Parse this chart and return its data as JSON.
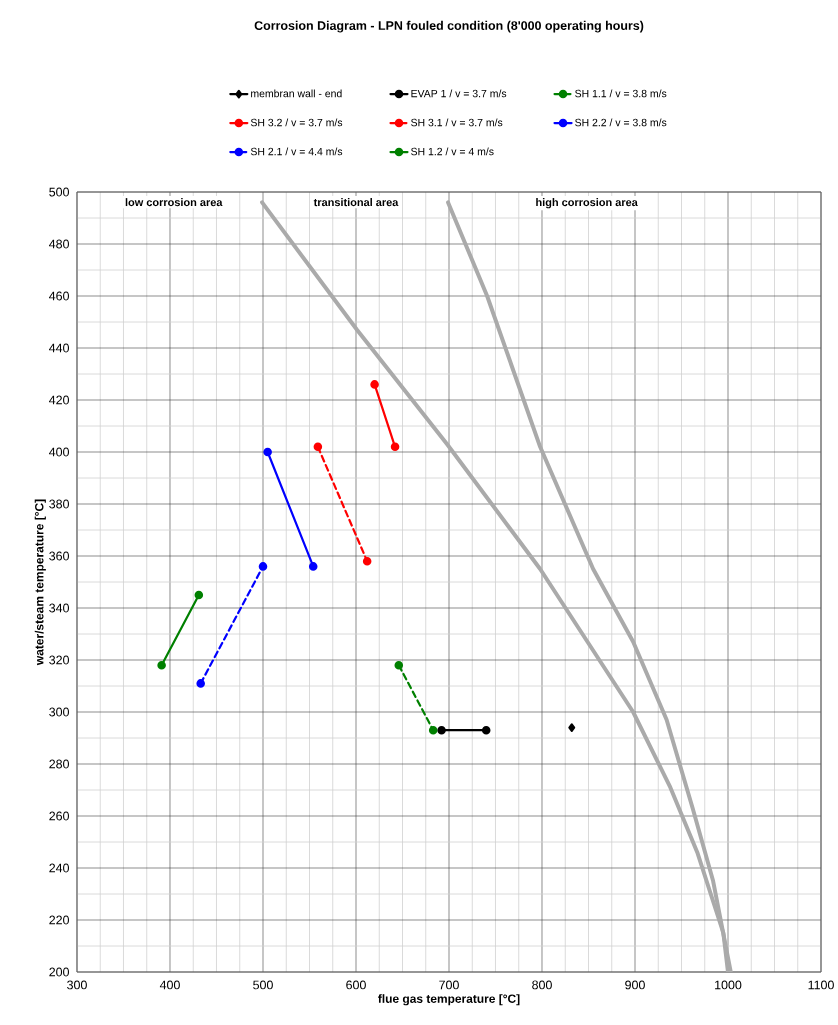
{
  "chart_data": {
    "type": "line",
    "title": "Corrosion Diagram - LPN  fouled condition  (8'000 operating hours)",
    "xlabel": "flue gas temperature  [°C]",
    "ylabel": "water/steam temperature  [°C]",
    "xlim": [
      300,
      1100
    ],
    "ylim": [
      200,
      500
    ],
    "xticks": [
      300,
      400,
      500,
      600,
      700,
      800,
      900,
      1000,
      1100
    ],
    "yticks": [
      200,
      220,
      240,
      260,
      280,
      300,
      320,
      340,
      360,
      380,
      400,
      420,
      440,
      460,
      480,
      500
    ],
    "grid": true,
    "legend": "top",
    "annotations": [
      "low corrosion area",
      "transitional area",
      "high corrosion area"
    ],
    "series": [
      {
        "name": "membran wall - end",
        "color": "#000000",
        "x": [
          832
        ],
        "values": [
          294
        ],
        "marker": "diamond",
        "line_style": "solid"
      },
      {
        "name": "EVAP 1 / v = 3.7 m/s",
        "color": "#000000",
        "x": [
          692,
          740
        ],
        "values": [
          293,
          293
        ],
        "marker": "circle",
        "line_style": "solid"
      },
      {
        "name": "SH 1.1 / v = 3.8 m/s",
        "color": "#008000",
        "x": [
          646,
          683
        ],
        "values": [
          318,
          293
        ],
        "marker": "circle",
        "line_style": "dashed"
      },
      {
        "name": "SH 3.2 / v = 3.7 m/s",
        "color": "#ff0000",
        "x": [
          620,
          642
        ],
        "values": [
          426,
          402
        ],
        "marker": "circle",
        "line_style": "solid"
      },
      {
        "name": "SH 3.1 / v = 3.7 m/s",
        "color": "#ff0000",
        "x": [
          559,
          612
        ],
        "values": [
          402,
          358
        ],
        "marker": "circle",
        "line_style": "dashed"
      },
      {
        "name": "SH 2.2 / v = 3.8 m/s",
        "color": "#0000ff",
        "x": [
          505,
          554
        ],
        "values": [
          400,
          356
        ],
        "marker": "circle",
        "line_style": "solid"
      },
      {
        "name": "SH 2.1 / v = 4.4 m/s",
        "color": "#0000ff",
        "x": [
          433,
          500
        ],
        "values": [
          311,
          356
        ],
        "marker": "circle",
        "line_style": "dashed"
      },
      {
        "name": "SH 1.2 / v = 4 m/s",
        "color": "#008000",
        "x": [
          391,
          431
        ],
        "values": [
          318,
          345
        ],
        "marker": "circle",
        "line_style": "solid"
      },
      {
        "color": "#aaaaaa",
        "x": [
          499,
          601,
          698,
          798,
          898,
          938,
          967,
          995,
          1000
        ],
        "values": [
          496,
          447,
          403,
          355,
          300,
          271,
          246,
          215,
          200
        ],
        "marker": "none",
        "line_style": "solid"
      },
      {
        "color": "#aaaaaa",
        "x": [
          699,
          741,
          798,
          855,
          898,
          934,
          962,
          984,
          1003
        ],
        "values": [
          496,
          460,
          402,
          355,
          327,
          297,
          263,
          235,
          200
        ],
        "marker": "none",
        "line_style": "solid"
      }
    ]
  }
}
